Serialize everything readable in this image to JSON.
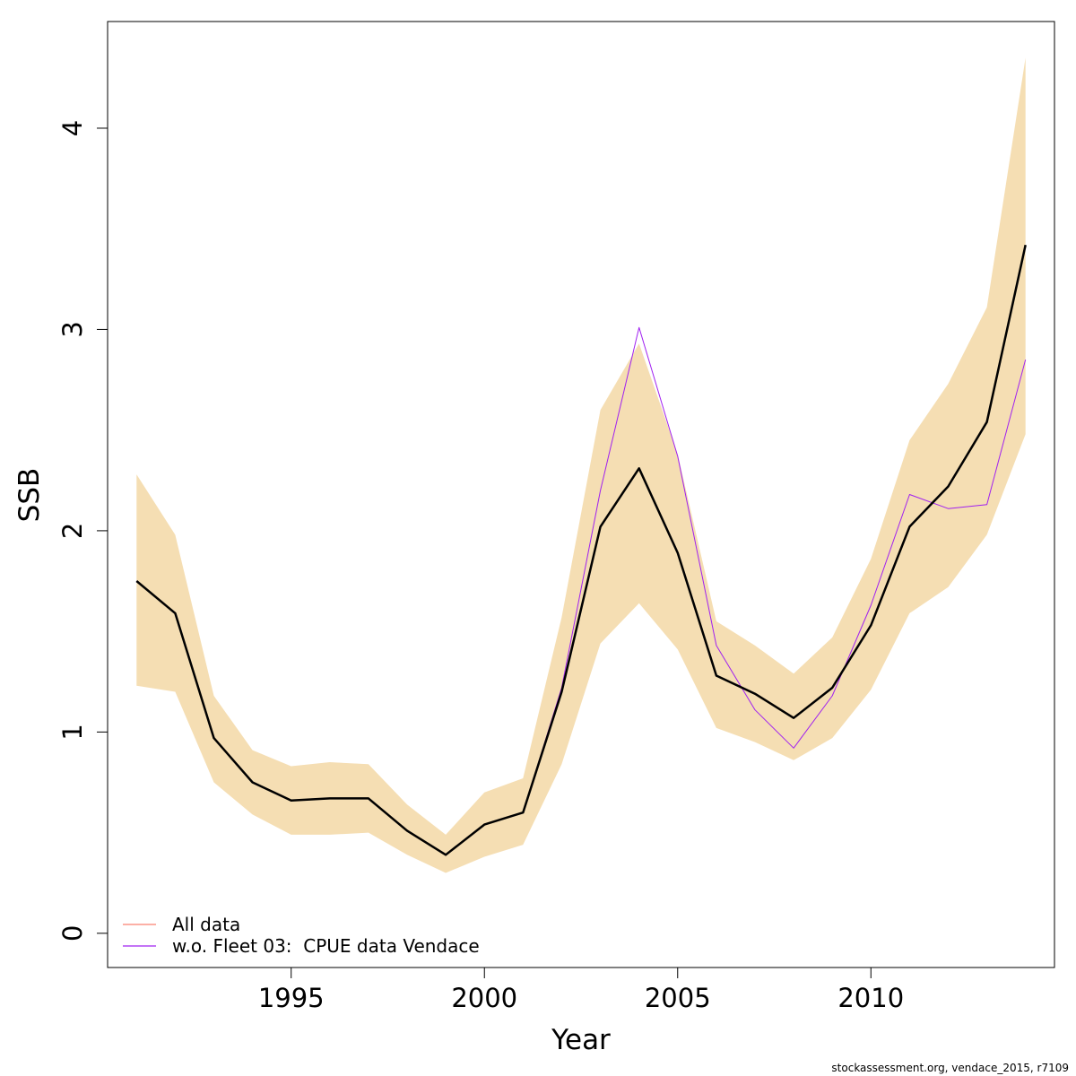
{
  "chart_data": {
    "type": "line",
    "xlabel": "Year",
    "ylabel": "SSB",
    "xlim": [
      1990.25,
      2014.75
    ],
    "ylim": [
      -0.17,
      4.53
    ],
    "x_ticks": [
      1995,
      2000,
      2005,
      2010
    ],
    "y_ticks": [
      0,
      1,
      2,
      3,
      4
    ],
    "x": [
      1991,
      1992,
      1993,
      1994,
      1995,
      1996,
      1997,
      1998,
      1999,
      2000,
      2001,
      2002,
      2003,
      2004,
      2005,
      2006,
      2007,
      2008,
      2009,
      2010,
      2011,
      2012,
      2013,
      2014
    ],
    "confidence_band": {
      "color": "#f5deb3",
      "lower": [
        1.23,
        1.2,
        0.75,
        0.59,
        0.49,
        0.49,
        0.5,
        0.39,
        0.3,
        0.38,
        0.44,
        0.84,
        1.44,
        1.64,
        1.41,
        1.02,
        0.95,
        0.86,
        0.97,
        1.21,
        1.59,
        1.72,
        1.98,
        2.48
      ],
      "upper": [
        2.28,
        1.98,
        1.18,
        0.91,
        0.83,
        0.85,
        0.84,
        0.64,
        0.49,
        0.7,
        0.77,
        1.57,
        2.6,
        2.93,
        2.38,
        1.55,
        1.43,
        1.29,
        1.47,
        1.86,
        2.45,
        2.73,
        3.11,
        4.35
      ]
    },
    "series": [
      {
        "name": "All data",
        "color": "#000000",
        "legend_color": "#fa8072",
        "values": [
          1.75,
          1.59,
          0.97,
          0.75,
          0.66,
          0.67,
          0.67,
          0.51,
          0.39,
          0.54,
          0.6,
          1.2,
          2.02,
          2.31,
          1.89,
          1.28,
          1.19,
          1.07,
          1.22,
          1.53,
          2.02,
          2.22,
          2.54,
          3.42
        ]
      },
      {
        "name": "w.o. Fleet 03:  CPUE data Vendace",
        "color": "#a020f0",
        "legend_color": "#a020f0",
        "values": [
          1.75,
          1.59,
          0.97,
          0.75,
          0.66,
          0.67,
          0.67,
          0.51,
          0.39,
          0.54,
          0.6,
          1.22,
          2.2,
          3.01,
          2.37,
          1.43,
          1.11,
          0.92,
          1.18,
          1.63,
          2.18,
          2.11,
          2.13,
          2.85
        ]
      }
    ],
    "legend_position": "bottom-left",
    "grid": false
  },
  "footer": "stockassessment.org, vendace_2015, r7109"
}
